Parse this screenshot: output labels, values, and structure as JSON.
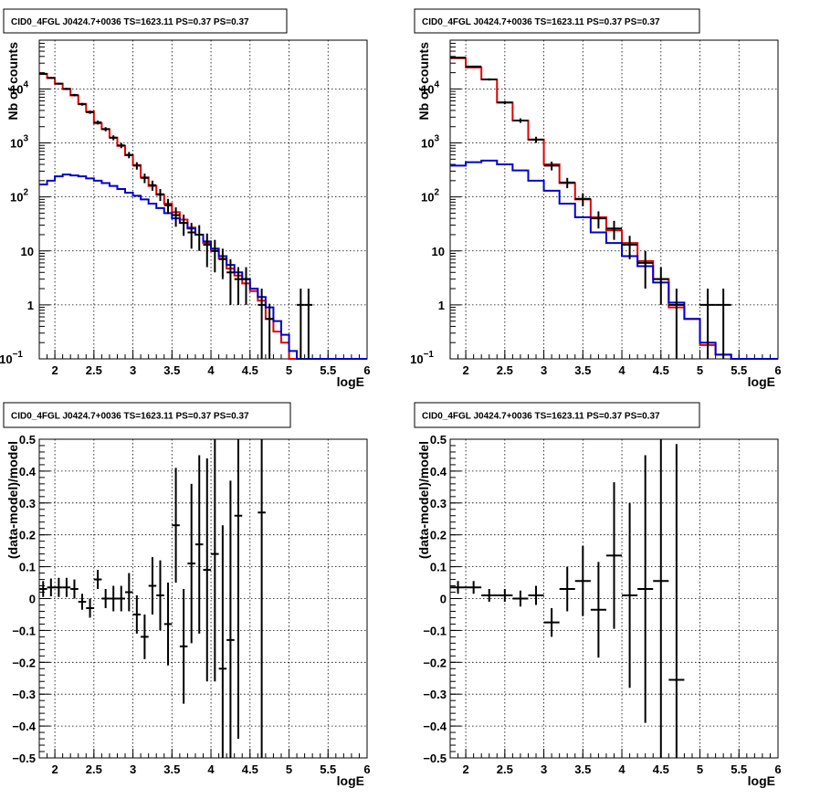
{
  "chart_data": [
    {
      "type": "step-histogram",
      "title": "CID0_4FGL J0424.7+0036 TS=1623.11 PS=0.37 PS=0.37",
      "xlabel": "logE",
      "ylabel": "Nb of counts",
      "xlim": [
        1.8,
        6.0
      ],
      "ylim": [
        0.1,
        80000
      ],
      "yscale": "log",
      "grid": true,
      "colors": {
        "model_total": "#e00000",
        "model_background": "#0000cc",
        "data": "#000000"
      },
      "xticks": [
        "2",
        "2.5",
        "3",
        "3.5",
        "4",
        "4.5",
        "5",
        "5.5",
        "6"
      ],
      "yticks": [
        {
          "value": 0.1,
          "label": "10",
          "sup": "−1"
        },
        {
          "value": 1,
          "label": "1",
          "sup": ""
        },
        {
          "value": 10,
          "label": "10",
          "sup": ""
        },
        {
          "value": 100,
          "label": "10",
          "sup": "2"
        },
        {
          "value": 1000,
          "label": "10",
          "sup": "3"
        },
        {
          "value": 10000,
          "label": "10",
          "sup": "4"
        }
      ],
      "bin_edges": [
        1.8,
        1.9,
        2.0,
        2.1,
        2.2,
        2.3,
        2.4,
        2.5,
        2.6,
        2.7,
        2.8,
        2.9,
        3.0,
        3.1,
        3.2,
        3.3,
        3.4,
        3.5,
        3.6,
        3.7,
        3.8,
        3.9,
        4.0,
        4.1,
        4.2,
        4.3,
        4.4,
        4.5,
        4.6,
        4.7,
        4.8,
        4.9,
        5.0,
        5.1,
        5.2,
        5.3,
        5.4,
        5.5,
        5.6,
        5.7,
        5.8,
        5.9,
        6.0
      ],
      "series": [
        {
          "role": "model_total",
          "values": [
            19000,
            16000,
            12500,
            10000,
            7600,
            5300,
            3800,
            2300,
            1800,
            1250,
            880,
            590,
            390,
            230,
            160,
            110,
            75,
            52,
            38,
            27,
            20,
            14,
            10,
            7.2,
            4.7,
            3.5,
            2.5,
            1.8,
            1.2,
            0.55,
            0.32,
            0.2,
            0.1,
            0.1,
            0.1,
            0.1,
            0.1,
            0.1,
            0.1,
            0.1,
            0.1,
            0.1
          ]
        },
        {
          "role": "model_background",
          "values": [
            170,
            200,
            240,
            260,
            250,
            240,
            220,
            200,
            180,
            160,
            140,
            120,
            105,
            90,
            75,
            62,
            50,
            40,
            33,
            26,
            20,
            15,
            11,
            8,
            5.5,
            4,
            3,
            2,
            1.4,
            0.9,
            0.5,
            0.28,
            0.14,
            0.1,
            0.1,
            0.1,
            0.1,
            0.1,
            0.1,
            0.1,
            0.1,
            0.1
          ]
        }
      ],
      "data_points": [
        {
          "x": 1.85,
          "y": 19000,
          "err": 700
        },
        {
          "x": 1.95,
          "y": 16000,
          "err": 600
        },
        {
          "x": 2.05,
          "y": 12500,
          "err": 500
        },
        {
          "x": 2.15,
          "y": 10000,
          "err": 450
        },
        {
          "x": 2.25,
          "y": 7700,
          "err": 400
        },
        {
          "x": 2.35,
          "y": 5200,
          "err": 300
        },
        {
          "x": 2.45,
          "y": 3700,
          "err": 250
        },
        {
          "x": 2.55,
          "y": 2400,
          "err": 200
        },
        {
          "x": 2.65,
          "y": 1800,
          "err": 160
        },
        {
          "x": 2.75,
          "y": 1250,
          "err": 130
        },
        {
          "x": 2.85,
          "y": 900,
          "err": 100
        },
        {
          "x": 2.95,
          "y": 600,
          "err": 80
        },
        {
          "x": 3.05,
          "y": 380,
          "err": 60
        },
        {
          "x": 3.15,
          "y": 225,
          "err": 45
        },
        {
          "x": 3.25,
          "y": 165,
          "err": 35
        },
        {
          "x": 3.35,
          "y": 112,
          "err": 28
        },
        {
          "x": 3.45,
          "y": 70,
          "err": 22
        },
        {
          "x": 3.55,
          "y": 46,
          "err": 18
        },
        {
          "x": 3.65,
          "y": 33,
          "err": 14
        },
        {
          "x": 3.75,
          "y": 22,
          "err": 11
        },
        {
          "x": 3.85,
          "y": 20,
          "err": 10
        },
        {
          "x": 3.95,
          "y": 13,
          "err": 8
        },
        {
          "x": 4.05,
          "y": 10,
          "err": 6
        },
        {
          "x": 4.15,
          "y": 7,
          "err": 4
        },
        {
          "x": 4.25,
          "y": 4,
          "err": 3
        },
        {
          "x": 4.35,
          "y": 3,
          "err": 2
        },
        {
          "x": 4.45,
          "y": 3,
          "err": 2
        },
        {
          "x": 4.65,
          "y": 1,
          "err": 1.0
        },
        {
          "x": 4.75,
          "y": 0.55,
          "err": 0.5
        },
        {
          "x": 5.15,
          "y": 1,
          "err": 1.0
        },
        {
          "x": 5.25,
          "y": 1,
          "err": 1.0
        }
      ]
    },
    {
      "type": "step-histogram",
      "title": "CID0_4FGL J0424.7+0036 TS=1623.11 PS=0.37 PS=0.37",
      "xlabel": "logE",
      "ylabel": "Nb of counts",
      "xlim": [
        1.8,
        6.0
      ],
      "ylim": [
        0.1,
        80000
      ],
      "yscale": "log",
      "grid": true,
      "colors": {
        "model_total": "#e00000",
        "model_background": "#0000cc",
        "data": "#000000"
      },
      "xticks": [
        "2",
        "2.5",
        "3",
        "3.5",
        "4",
        "4.5",
        "5",
        "5.5",
        "6"
      ],
      "yticks": [
        {
          "value": 0.1,
          "label": "10",
          "sup": "−1"
        },
        {
          "value": 1,
          "label": "1",
          "sup": ""
        },
        {
          "value": 10,
          "label": "10",
          "sup": ""
        },
        {
          "value": 100,
          "label": "10",
          "sup": "2"
        },
        {
          "value": 1000,
          "label": "10",
          "sup": "3"
        },
        {
          "value": 10000,
          "label": "10",
          "sup": "4"
        }
      ],
      "bin_edges": [
        1.8,
        2.0,
        2.2,
        2.4,
        2.6,
        2.8,
        3.0,
        3.2,
        3.4,
        3.6,
        3.8,
        4.0,
        4.2,
        4.4,
        4.6,
        4.8,
        5.0,
        5.2,
        5.4,
        5.6,
        5.8,
        6.0
      ],
      "series": [
        {
          "role": "model_total",
          "values": [
            37000,
            25000,
            15000,
            5600,
            2600,
            1150,
            400,
            180,
            90,
            42,
            24,
            14,
            6.5,
            3.0,
            0.9,
            0.55,
            0.18,
            0.12,
            0.1,
            0.1,
            0.1
          ]
        },
        {
          "role": "model_background",
          "values": [
            380,
            440,
            470,
            400,
            310,
            200,
            130,
            75,
            42,
            22,
            14,
            8,
            5.2,
            2.6,
            1.1,
            0.55,
            0.2,
            0.12,
            0.1,
            0.1,
            0.1
          ]
        }
      ],
      "data_points": [
        {
          "x": 1.9,
          "y": 38000,
          "err": 1200
        },
        {
          "x": 2.1,
          "y": 26000,
          "err": 900
        },
        {
          "x": 2.3,
          "y": 15000,
          "err": 700
        },
        {
          "x": 2.5,
          "y": 5600,
          "err": 400
        },
        {
          "x": 2.7,
          "y": 2600,
          "err": 250
        },
        {
          "x": 2.9,
          "y": 1150,
          "err": 150
        },
        {
          "x": 3.1,
          "y": 380,
          "err": 70
        },
        {
          "x": 3.3,
          "y": 185,
          "err": 40
        },
        {
          "x": 3.5,
          "y": 92,
          "err": 25
        },
        {
          "x": 3.7,
          "y": 40,
          "err": 14
        },
        {
          "x": 3.9,
          "y": 26,
          "err": 10
        },
        {
          "x": 4.1,
          "y": 13,
          "err": 6
        },
        {
          "x": 4.3,
          "y": 6,
          "err": 4
        },
        {
          "x": 4.5,
          "y": 3,
          "err": 2
        },
        {
          "x": 4.7,
          "y": 1,
          "err": 1.0
        },
        {
          "x": 5.1,
          "y": 1,
          "err": 1.0
        },
        {
          "x": 5.3,
          "y": 1,
          "err": 1.0
        }
      ]
    },
    {
      "type": "errorbar",
      "title": "CID0_4FGL J0424.7+0036 TS=1623.11 PS=0.37 PS=0.37",
      "xlabel": "logE",
      "ylabel": "(data-model)/model",
      "xlim": [
        1.8,
        6.0
      ],
      "ylim": [
        -0.5,
        0.5
      ],
      "grid": true,
      "xticks": [
        "2",
        "2.5",
        "3",
        "3.5",
        "4",
        "4.5",
        "5",
        "5.5",
        "6"
      ],
      "yticks": [
        "−0.5",
        "−0.4",
        "−0.3",
        "−0.2",
        "−0.1",
        "0",
        "0.1",
        "0.2",
        "0.3",
        "0.4",
        "0.5"
      ],
      "bin_width": 0.1,
      "points": [
        {
          "x": 1.85,
          "y": 0.03,
          "err": 0.025
        },
        {
          "x": 1.95,
          "y": 0.035,
          "err": 0.028
        },
        {
          "x": 2.05,
          "y": 0.035,
          "err": 0.03
        },
        {
          "x": 2.15,
          "y": 0.035,
          "err": 0.03
        },
        {
          "x": 2.25,
          "y": 0.03,
          "err": 0.03
        },
        {
          "x": 2.35,
          "y": -0.01,
          "err": 0.025
        },
        {
          "x": 2.45,
          "y": -0.03,
          "err": 0.03
        },
        {
          "x": 2.55,
          "y": 0.06,
          "err": 0.03
        },
        {
          "x": 2.65,
          "y": 0.0,
          "err": 0.03
        },
        {
          "x": 2.75,
          "y": 0.0,
          "err": 0.04
        },
        {
          "x": 2.85,
          "y": 0.0,
          "err": 0.04
        },
        {
          "x": 2.95,
          "y": 0.02,
          "err": 0.06
        },
        {
          "x": 3.05,
          "y": -0.05,
          "err": 0.06
        },
        {
          "x": 3.15,
          "y": -0.12,
          "err": 0.07
        },
        {
          "x": 3.25,
          "y": 0.04,
          "err": 0.09
        },
        {
          "x": 3.35,
          "y": 0.01,
          "err": 0.11
        },
        {
          "x": 3.45,
          "y": -0.08,
          "err": 0.13
        },
        {
          "x": 3.55,
          "y": 0.23,
          "err": 0.18
        },
        {
          "x": 3.65,
          "y": -0.15,
          "err": 0.18
        },
        {
          "x": 3.75,
          "y": 0.11,
          "err": 0.25
        },
        {
          "x": 3.85,
          "y": 0.17,
          "err": 0.28
        },
        {
          "x": 3.95,
          "y": 0.09,
          "err": 0.35
        },
        {
          "x": 4.05,
          "y": 0.14,
          "err": 0.4
        },
        {
          "x": 4.15,
          "y": -0.22,
          "err": 0.45
        },
        {
          "x": 4.25,
          "y": -0.13,
          "err": 0.5
        },
        {
          "x": 4.35,
          "y": 0.26,
          "err": 0.7
        },
        {
          "x": 4.65,
          "y": 0.27,
          "err": 1.0
        }
      ]
    },
    {
      "type": "errorbar",
      "title": "CID0_4FGL J0424.7+0036 TS=1623.11 PS=0.37 PS=0.37",
      "xlabel": "logE",
      "ylabel": "(data-model)/model",
      "xlim": [
        1.8,
        6.0
      ],
      "ylim": [
        -0.5,
        0.5
      ],
      "grid": true,
      "xticks": [
        "2",
        "2.5",
        "3",
        "3.5",
        "4",
        "4.5",
        "5",
        "5.5",
        "6"
      ],
      "yticks": [
        "−0.5",
        "−0.4",
        "−0.3",
        "−0.2",
        "−0.1",
        "0",
        "0.1",
        "0.2",
        "0.3",
        "0.4",
        "0.5"
      ],
      "bin_width": 0.2,
      "points": [
        {
          "x": 1.9,
          "y": 0.035,
          "err": 0.02
        },
        {
          "x": 2.1,
          "y": 0.035,
          "err": 0.02
        },
        {
          "x": 2.3,
          "y": 0.01,
          "err": 0.02
        },
        {
          "x": 2.5,
          "y": 0.01,
          "err": 0.02
        },
        {
          "x": 2.7,
          "y": 0.0,
          "err": 0.025
        },
        {
          "x": 2.9,
          "y": 0.01,
          "err": 0.03
        },
        {
          "x": 3.1,
          "y": -0.075,
          "err": 0.045
        },
        {
          "x": 3.3,
          "y": 0.03,
          "err": 0.07
        },
        {
          "x": 3.5,
          "y": 0.055,
          "err": 0.11
        },
        {
          "x": 3.7,
          "y": -0.035,
          "err": 0.15
        },
        {
          "x": 3.9,
          "y": 0.135,
          "err": 0.23
        },
        {
          "x": 4.1,
          "y": 0.01,
          "err": 0.29
        },
        {
          "x": 4.3,
          "y": 0.03,
          "err": 0.42
        },
        {
          "x": 4.5,
          "y": 0.055,
          "err": 0.6
        },
        {
          "x": 4.7,
          "y": -0.255,
          "err": 0.74
        }
      ]
    }
  ]
}
